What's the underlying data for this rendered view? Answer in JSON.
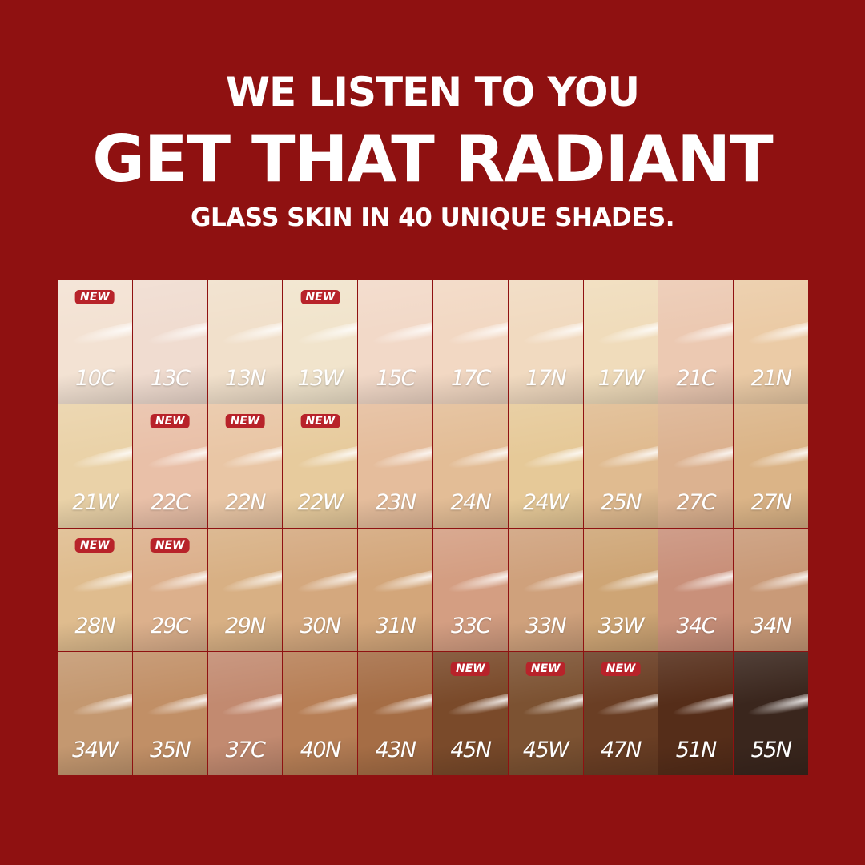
{
  "headline": {
    "line1": "WE LISTEN TO YOU",
    "line2": "GET THAT RADIANT",
    "line3": "GLASS SKIN IN 40 UNIQUE SHADES."
  },
  "badge_label": "NEW",
  "colors": {
    "background": "#8f1111",
    "badge": "#b8232a"
  },
  "shades": [
    {
      "name": "10C",
      "color": "#f3e2d3",
      "new": true
    },
    {
      "name": "13C",
      "color": "#f0dcd0",
      "new": false
    },
    {
      "name": "13N",
      "color": "#f1e0cb",
      "new": false
    },
    {
      "name": "13W",
      "color": "#f1e4cc",
      "new": true
    },
    {
      "name": "15C",
      "color": "#f2d9c8",
      "new": false
    },
    {
      "name": "17C",
      "color": "#f2d8c3",
      "new": false
    },
    {
      "name": "17N",
      "color": "#f1dac0",
      "new": false
    },
    {
      "name": "17W",
      "color": "#f0dcbb",
      "new": false
    },
    {
      "name": "21C",
      "color": "#ecc9b2",
      "new": false
    },
    {
      "name": "21N",
      "color": "#ebcba6",
      "new": false
    },
    {
      "name": "21W",
      "color": "#ead2a8",
      "new": false
    },
    {
      "name": "22C",
      "color": "#e9c0a8",
      "new": true
    },
    {
      "name": "22N",
      "color": "#e9c6a5",
      "new": true
    },
    {
      "name": "22W",
      "color": "#e7cb9d",
      "new": true
    },
    {
      "name": "23N",
      "color": "#e5bd9c",
      "new": false
    },
    {
      "name": "24N",
      "color": "#e3bd96",
      "new": false
    },
    {
      "name": "24W",
      "color": "#e6c998",
      "new": false
    },
    {
      "name": "25N",
      "color": "#e0bb90",
      "new": false
    },
    {
      "name": "27C",
      "color": "#dcb290",
      "new": false
    },
    {
      "name": "27N",
      "color": "#dbb487",
      "new": false
    },
    {
      "name": "28N",
      "color": "#dfbc8e",
      "new": true
    },
    {
      "name": "29C",
      "color": "#dcb08c",
      "new": true
    },
    {
      "name": "29N",
      "color": "#d8b084",
      "new": false
    },
    {
      "name": "30N",
      "color": "#d4a87e",
      "new": false
    },
    {
      "name": "31N",
      "color": "#d3a67a",
      "new": false
    },
    {
      "name": "33C",
      "color": "#d49e82",
      "new": false
    },
    {
      "name": "33N",
      "color": "#cfa17c",
      "new": false
    },
    {
      "name": "33W",
      "color": "#cea575",
      "new": false
    },
    {
      "name": "34C",
      "color": "#c9907a",
      "new": false
    },
    {
      "name": "34N",
      "color": "#c99a78",
      "new": false
    },
    {
      "name": "34W",
      "color": "#c49870",
      "new": false
    },
    {
      "name": "35N",
      "color": "#c18f66",
      "new": false
    },
    {
      "name": "37C",
      "color": "#c28a70",
      "new": false
    },
    {
      "name": "40N",
      "color": "#b77f56",
      "new": false
    },
    {
      "name": "43N",
      "color": "#a56d45",
      "new": false
    },
    {
      "name": "45N",
      "color": "#7a4a2a",
      "new": true
    },
    {
      "name": "45W",
      "color": "#7c5232",
      "new": true
    },
    {
      "name": "47N",
      "color": "#6a3e24",
      "new": true
    },
    {
      "name": "51N",
      "color": "#552d19",
      "new": false
    },
    {
      "name": "55N",
      "color": "#3a261d",
      "new": false
    }
  ]
}
